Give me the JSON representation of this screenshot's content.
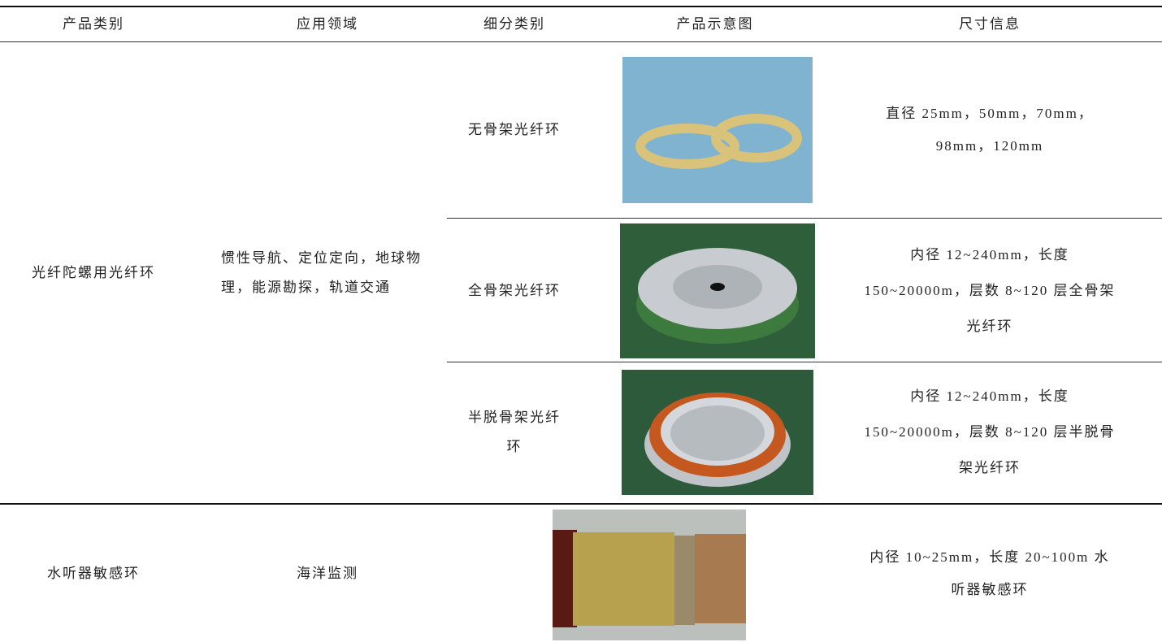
{
  "table": {
    "header": [
      "产品类别",
      "应用领域",
      "细分类别",
      "产品示意图",
      "尺寸信息"
    ],
    "groups": [
      {
        "category": "光纤陀螺用光纤环",
        "application": "惯性导航、定位定向，地球物理，能源勘探，轨道交通",
        "items": [
          {
            "subcategory": "无骨架光纤环",
            "size": "直径 25mm，50mm，70mm，98mm，120mm"
          },
          {
            "subcategory": "全骨架光纤环",
            "size": "内径 12~240mm，长度 150~20000m，层数 8~120 层全骨架光纤环"
          },
          {
            "subcategory": "半脱骨架光纤环",
            "size": "内径 12~240mm，长度 150~20000m，层数 8~120 层半脱骨架光纤环"
          }
        ]
      },
      {
        "category": "水听器敏感环",
        "application": "海洋监测",
        "items": [
          {
            "size": "内径 10~25mm，长度 20~100m 水听器敏感环"
          }
        ]
      }
    ]
  }
}
